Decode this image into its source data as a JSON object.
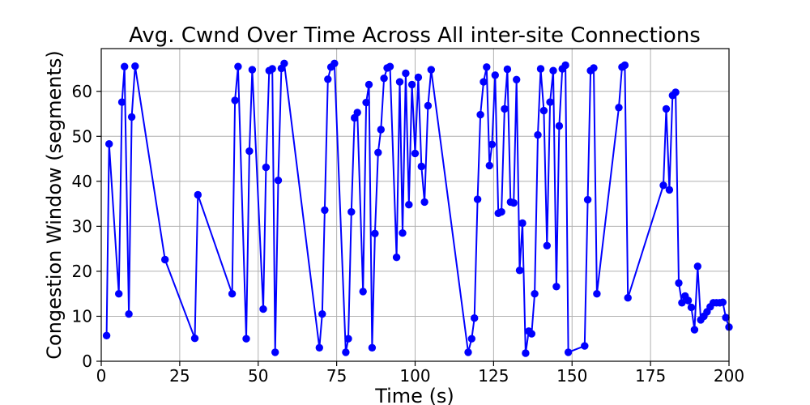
{
  "chart_data": {
    "type": "line",
    "title": "Avg. Cwnd Over Time Across All inter-site Connections",
    "xlabel": "Time (s)",
    "ylabel": "Congestion Window (segments)",
    "xlim": [
      0,
      200
    ],
    "ylim": [
      0,
      69.5
    ],
    "xticks": [
      0,
      25,
      50,
      75,
      100,
      125,
      150,
      175,
      200
    ],
    "yticks": [
      0,
      10,
      20,
      30,
      40,
      50,
      60
    ],
    "grid": true,
    "series": [
      {
        "color": "#0000ff",
        "marker": "circle",
        "x": [
          1.7,
          2.5,
          5.6,
          6.6,
          7.4,
          8.8,
          9.7,
          10.8,
          20.3,
          29.8,
          30.8,
          41.7,
          42.6,
          43.6,
          46.2,
          47.2,
          48.1,
          51.6,
          52.5,
          53.5,
          54.5,
          55.4,
          56.4,
          57.4,
          58.3,
          69.5,
          70.4,
          71.2,
          72.2,
          73.2,
          74.3,
          77.9,
          78.7,
          79.7,
          80.7,
          81.6,
          83.4,
          84.4,
          85.3,
          86.3,
          87.2,
          88.2,
          89.1,
          90.1,
          91.1,
          92.0,
          94.1,
          95.1,
          96.0,
          97.0,
          98.0,
          99.0,
          100.0,
          101.0,
          102.0,
          103.0,
          104.1,
          105.1,
          116.9,
          118.0,
          118.9,
          119.9,
          120.8,
          121.8,
          122.8,
          123.7,
          124.5,
          125.5,
          126.5,
          127.5,
          128.5,
          129.4,
          130.4,
          131.4,
          132.3,
          133.3,
          134.2,
          135.2,
          136.2,
          137.1,
          138.1,
          139.1,
          140.0,
          141.0,
          142.0,
          143.0,
          144.0,
          145.0,
          145.9,
          146.9,
          147.9,
          148.8,
          154.0,
          155.0,
          155.9,
          156.9,
          157.9,
          164.9,
          165.9,
          166.8,
          167.8,
          179.1,
          180.0,
          181.0,
          182.0,
          183.0,
          184.0,
          185.0,
          186.0,
          187.0,
          188.0,
          189.0,
          190.0,
          191.0,
          192.0,
          193.0,
          194.0,
          195.0,
          196.0,
          197.0,
          198.0,
          199.0,
          200.0
        ],
        "y": [
          5.7,
          48.3,
          15.0,
          57.6,
          65.5,
          10.5,
          54.3,
          65.6,
          22.6,
          5.1,
          37.0,
          15.0,
          58.0,
          65.5,
          5.0,
          46.7,
          64.8,
          11.6,
          43.1,
          64.6,
          65.0,
          2.0,
          40.2,
          65.1,
          66.2,
          3.0,
          10.5,
          33.6,
          62.7,
          65.4,
          66.2,
          2.0,
          5.0,
          33.2,
          54.1,
          55.3,
          15.5,
          57.5,
          61.5,
          3.0,
          28.4,
          46.4,
          51.5,
          62.9,
          65.2,
          65.5,
          23.1,
          62.1,
          28.5,
          64.0,
          34.8,
          61.5,
          46.2,
          63.1,
          43.3,
          35.4,
          56.8,
          64.8,
          2.0,
          5.0,
          9.6,
          36.0,
          54.8,
          62.1,
          65.4,
          43.5,
          48.2,
          63.6,
          32.9,
          33.2,
          56.1,
          64.9,
          35.4,
          35.2,
          62.6,
          20.2,
          30.7,
          1.8,
          6.7,
          6.1,
          15.0,
          50.3,
          65.0,
          55.7,
          25.7,
          57.6,
          64.6,
          16.6,
          52.3,
          65.0,
          65.8,
          2.0,
          3.4,
          35.9,
          64.6,
          65.2,
          15.0,
          56.4,
          65.4,
          65.8,
          14.1,
          39.1,
          56.1,
          38.1,
          59.1,
          59.8,
          17.4,
          13.0,
          14.5,
          13.5,
          12.0,
          7.0,
          21.1,
          9.2,
          10.0,
          11.0,
          12.1,
          13.0,
          13.0,
          13.0,
          13.1,
          9.7,
          7.6
        ]
      }
    ]
  }
}
